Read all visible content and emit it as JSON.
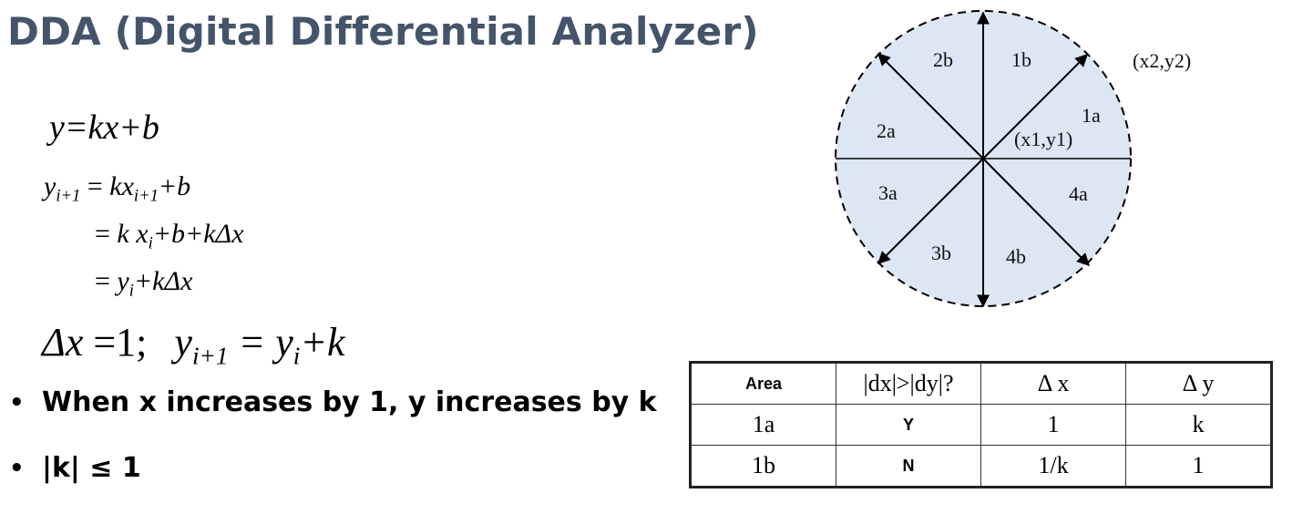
{
  "title": "DDA (Digital Differential Analyzer)",
  "equations": {
    "eq1": "y=kx+b",
    "eq2": {
      "lhs": "y",
      "lhs_sub": "i+1",
      "eq": " = ",
      "a": "kx",
      "a_sub": "i+1",
      "b": "+b"
    },
    "eq3": {
      "eq": "= ",
      "a": "k x",
      "a_sub": "i",
      "b": "+b+kΔx"
    },
    "eq4": {
      "eq": "= ",
      "a": "y",
      "a_sub": "i",
      "b": "+kΔx"
    },
    "eq5": {
      "a": "Δx",
      "b": " =1;",
      "c": "y",
      "c_sub": "i+1",
      "d": " = y",
      "d_sub": "i",
      "e": "+k"
    }
  },
  "bullets": [
    "When x increases by 1, y increases by k",
    "|k| ≤ 1"
  ],
  "bullet_symbol": "•",
  "diagram": {
    "fill_color": "#dde6f3",
    "labels": {
      "r1b": "1b",
      "r2b": "2b",
      "r1a": "1a",
      "r2a": "2a",
      "r3a": "3a",
      "r4a": "4a",
      "r3b": "3b",
      "r4b": "4b",
      "origin": "(x1,y1)",
      "end": "(x2,y2)"
    }
  },
  "table": {
    "headers": [
      "Area",
      "|dx|>|dy|?",
      "Δ x",
      "Δ y"
    ],
    "rows": [
      [
        "1a",
        "Y",
        "1",
        "k"
      ],
      [
        "1b",
        "N",
        "1/k",
        "1"
      ]
    ]
  }
}
